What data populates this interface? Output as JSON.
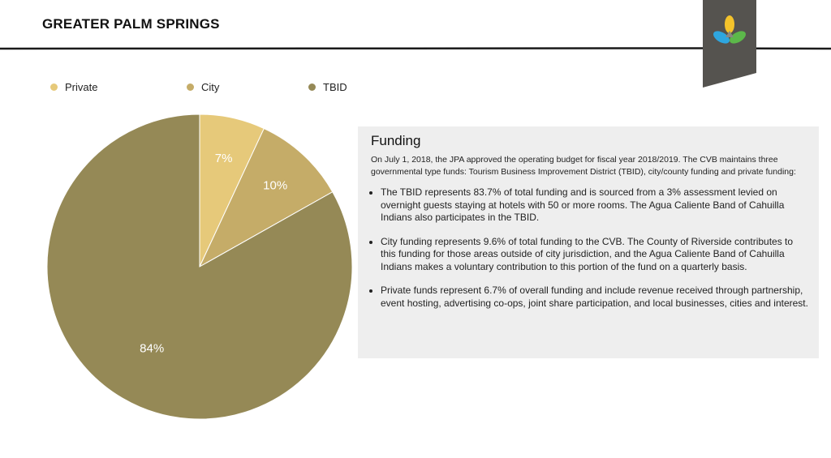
{
  "header": {
    "brand": "GREATER PALM SPRINGS",
    "logo_icon": "greater-palm-springs-tri-leaf-logo"
  },
  "colors": {
    "private": "#e6c97a",
    "city": "#c5ac68",
    "tbid": "#958956",
    "panel_bg": "#eeeeee",
    "ribbon": "#55534f",
    "logo_yellow": "#f4c32b",
    "logo_blue": "#2ea6e0",
    "logo_green": "#5cb84a",
    "logo_grey": "#8a8882"
  },
  "chart_data": {
    "type": "pie",
    "title": "",
    "legend_position": "top",
    "series": [
      {
        "name": "Private",
        "value": 7,
        "label": "7%"
      },
      {
        "name": "City",
        "value": 10,
        "label": "10%"
      },
      {
        "name": "TBID",
        "value": 84,
        "label": "84%"
      }
    ]
  },
  "panel": {
    "title": "Funding",
    "intro": "On July 1, 2018, the JPA approved the operating budget for fiscal year 2018/2019. The CVB maintains three governmental type funds: Tourism Business Improvement District (TBID), city/county funding and private funding:",
    "bullets": [
      "The TBID represents 83.7% of total funding and is sourced from a 3% assessment levied on overnight guests staying at hotels with 50 or more rooms. The Agua Caliente Band of Cahuilla Indians also participates in the TBID.",
      "City funding represents 9.6% of total funding to the CVB. The County of Riverside contributes to this funding for those areas outside of city jurisdiction, and the Agua Caliente Band of Cahuilla Indians makes a voluntary contribution to this portion of the fund on a quarterly basis.",
      "Private funds represent 6.7% of overall funding and include revenue received through partnership, event hosting, advertising co-ops, joint share participation, and local businesses, cities and interest."
    ]
  }
}
